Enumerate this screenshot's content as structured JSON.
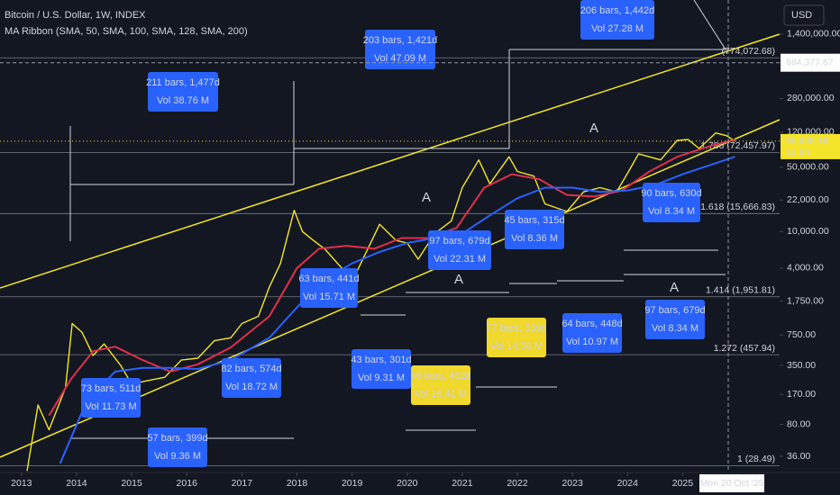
{
  "chart_data": {
    "type": "line",
    "log_scale": true,
    "grid": false,
    "title": "Bitcoin / U.S. Dollar, 1W, INDEX",
    "subtitle": "MA Ribbon (SMA, 50, SMA, 100, SMA, 128, SMA, 200)",
    "currency": "USD",
    "xlim": [
      2012.61,
      2026.76
    ],
    "xticks": [
      2013,
      2014,
      2015,
      2016,
      2017,
      2018,
      2019,
      2020,
      2021,
      2022,
      2023,
      2024,
      2025
    ],
    "ylim": [
      24,
      3290000
    ],
    "yticks": [
      {
        "value": 1400000,
        "label": "1,400,000.00"
      },
      {
        "value": 280000,
        "label": "280,000.00"
      },
      {
        "value": 120000,
        "label": "120,000.00"
      },
      {
        "value": 50000,
        "label": "50,000.00"
      },
      {
        "value": 22000,
        "label": "22,000.00"
      },
      {
        "value": 10000,
        "label": "10,000.00"
      },
      {
        "value": 4000,
        "label": "4,000.00"
      },
      {
        "value": 1750,
        "label": "1,750.00"
      },
      {
        "value": 750,
        "label": "750.00"
      },
      {
        "value": 350,
        "label": "350.00"
      },
      {
        "value": 170,
        "label": "170.00"
      },
      {
        "value": 80,
        "label": "80.00"
      },
      {
        "value": 36,
        "label": "36.00"
      }
    ],
    "series": [
      {
        "color": "#f5e52a",
        "x": [
          2013.1,
          2013.3,
          2013.5,
          2013.8,
          2013.92,
          2014.1,
          2014.3,
          2014.5,
          2014.8,
          2015.0,
          2015.3,
          2015.6,
          2015.9,
          2016.2,
          2016.5,
          2016.8,
          2017.0,
          2017.3,
          2017.5,
          2017.7,
          2017.95,
          2018.1,
          2018.3,
          2018.5,
          2018.9,
          2019.1,
          2019.4,
          2019.5,
          2019.8,
          2020.0,
          2020.2,
          2020.5,
          2020.8,
          2021.0,
          2021.3,
          2021.5,
          2021.85,
          2022.0,
          2022.3,
          2022.5,
          2022.9,
          2023.2,
          2023.5,
          2023.8,
          2024.0,
          2024.2,
          2024.6,
          2024.9,
          2025.1,
          2025.3,
          2025.6,
          2025.8,
          2025.95
        ],
        "values": [
          25,
          130,
          70,
          200,
          1000,
          800,
          450,
          600,
          350,
          220,
          240,
          260,
          400,
          420,
          650,
          700,
          1000,
          1200,
          2500,
          4500,
          17000,
          10000,
          8000,
          6500,
          3500,
          3800,
          9000,
          12000,
          8000,
          7500,
          5000,
          9500,
          13000,
          30000,
          60000,
          33000,
          65000,
          45000,
          40000,
          20000,
          16500,
          27000,
          30000,
          27000,
          43000,
          70000,
          60000,
          98000,
          100000,
          80000,
          118000,
          110000,
          95958.19
        ]
      },
      {
        "color": "#e0304a",
        "x": [
          2013.5,
          2013.9,
          2014.3,
          2014.7,
          2015.2,
          2015.7,
          2016.2,
          2016.8,
          2017.5,
          2018.0,
          2018.4,
          2018.9,
          2019.4,
          2019.9,
          2020.4,
          2020.9,
          2021.4,
          2021.9,
          2022.4,
          2022.9,
          2023.4,
          2023.9,
          2024.4,
          2024.9,
          2025.5,
          2025.95
        ],
        "values": [
          100,
          250,
          500,
          560,
          400,
          300,
          360,
          550,
          1200,
          4000,
          6500,
          7000,
          6500,
          8500,
          8500,
          11000,
          30000,
          42000,
          37000,
          25000,
          24000,
          28000,
          45000,
          65000,
          85000,
          100000
        ]
      },
      {
        "color": "#2962ff",
        "x": [
          2013.7,
          2014.2,
          2014.7,
          2015.2,
          2015.7,
          2016.2,
          2016.8,
          2017.5,
          2018.0,
          2018.5,
          2019.0,
          2019.5,
          2020.0,
          2020.5,
          2021.0,
          2021.5,
          2022.0,
          2022.5,
          2023.0,
          2023.5,
          2024.0,
          2024.5,
          2025.0,
          2025.95
        ],
        "values": [
          30,
          150,
          300,
          330,
          330,
          320,
          400,
          700,
          1500,
          3000,
          4500,
          6000,
          7500,
          8500,
          9500,
          15000,
          23000,
          30000,
          30000,
          27000,
          28000,
          32000,
          42000,
          65000
        ]
      }
    ],
    "levels": [
      {
        "label": "(774,072.68)",
        "value": 774072.68
      },
      {
        "label": "1.786 (72,457.97)",
        "value": 72457.97
      },
      {
        "label": "1.618 (15,666.83)",
        "value": 15666.83
      },
      {
        "label": "1.414 (1,951.81)",
        "value": 1951.81
      },
      {
        "label": "1.272 (457.94)",
        "value": 457.94
      },
      {
        "label": "1 (28.49)",
        "value": 28.49
      }
    ],
    "last_price": {
      "value": 95958.19,
      "label": "95,958.19"
    },
    "countdown": "1d 8h",
    "crosshair_price": {
      "value": 684377.67,
      "label": "684,377.67"
    },
    "crosshair_date": "Mon 20 Oct '25",
    "annotations": [
      {
        "lines": [
          "211 bars, 1,477d",
          "Vol 38.76 M"
        ],
        "color": "#2962ff"
      },
      {
        "lines": [
          "203 bars, 1,421d",
          "Vol 47.09 M"
        ],
        "color": "#2962ff"
      },
      {
        "lines": [
          "206 bars, 1,442d",
          "Vol 27.28 M"
        ],
        "color": "#2962ff"
      },
      {
        "lines": [
          "63 bars, 441d",
          "Vol 15.71 M"
        ],
        "color": "#2962ff"
      },
      {
        "lines": [
          "97 bars, 679d",
          "Vol 22.31 M"
        ],
        "color": "#2962ff"
      },
      {
        "lines": [
          "45 bars, 315d",
          "Vol 8.36 M"
        ],
        "color": "#2962ff"
      },
      {
        "lines": [
          "90 bars, 630d",
          "Vol 8.34 M"
        ],
        "color": "#2962ff"
      },
      {
        "lines": [
          "73 bars, 511d",
          "Vol 11.73 M"
        ],
        "color": "#2962ff"
      },
      {
        "lines": [
          "82 bars, 574d",
          "Vol 18.72 M"
        ],
        "color": "#2962ff"
      },
      {
        "lines": [
          "43 bars, 301d",
          "Vol 9.31 M"
        ],
        "color": "#2962ff"
      },
      {
        "lines": [
          "77 bars, 539d",
          "Vol 14.56 M"
        ],
        "color": "#f0d82c"
      },
      {
        "lines": [
          "64 bars, 448d",
          "Vol 10.97 M"
        ],
        "color": "#2962ff"
      },
      {
        "lines": [
          "97 bars, 679d",
          "Vol 8.34 M"
        ],
        "color": "#2962ff"
      },
      {
        "lines": [
          "66 bars, 462d",
          "Vol 16.41 M"
        ],
        "color": "#f0d82c"
      },
      {
        "lines": [
          "57 bars, 399d",
          "Vol 9.36 M"
        ],
        "color": "#2962ff"
      }
    ],
    "wave_labels": [
      "A",
      "A",
      "A",
      "A"
    ]
  }
}
